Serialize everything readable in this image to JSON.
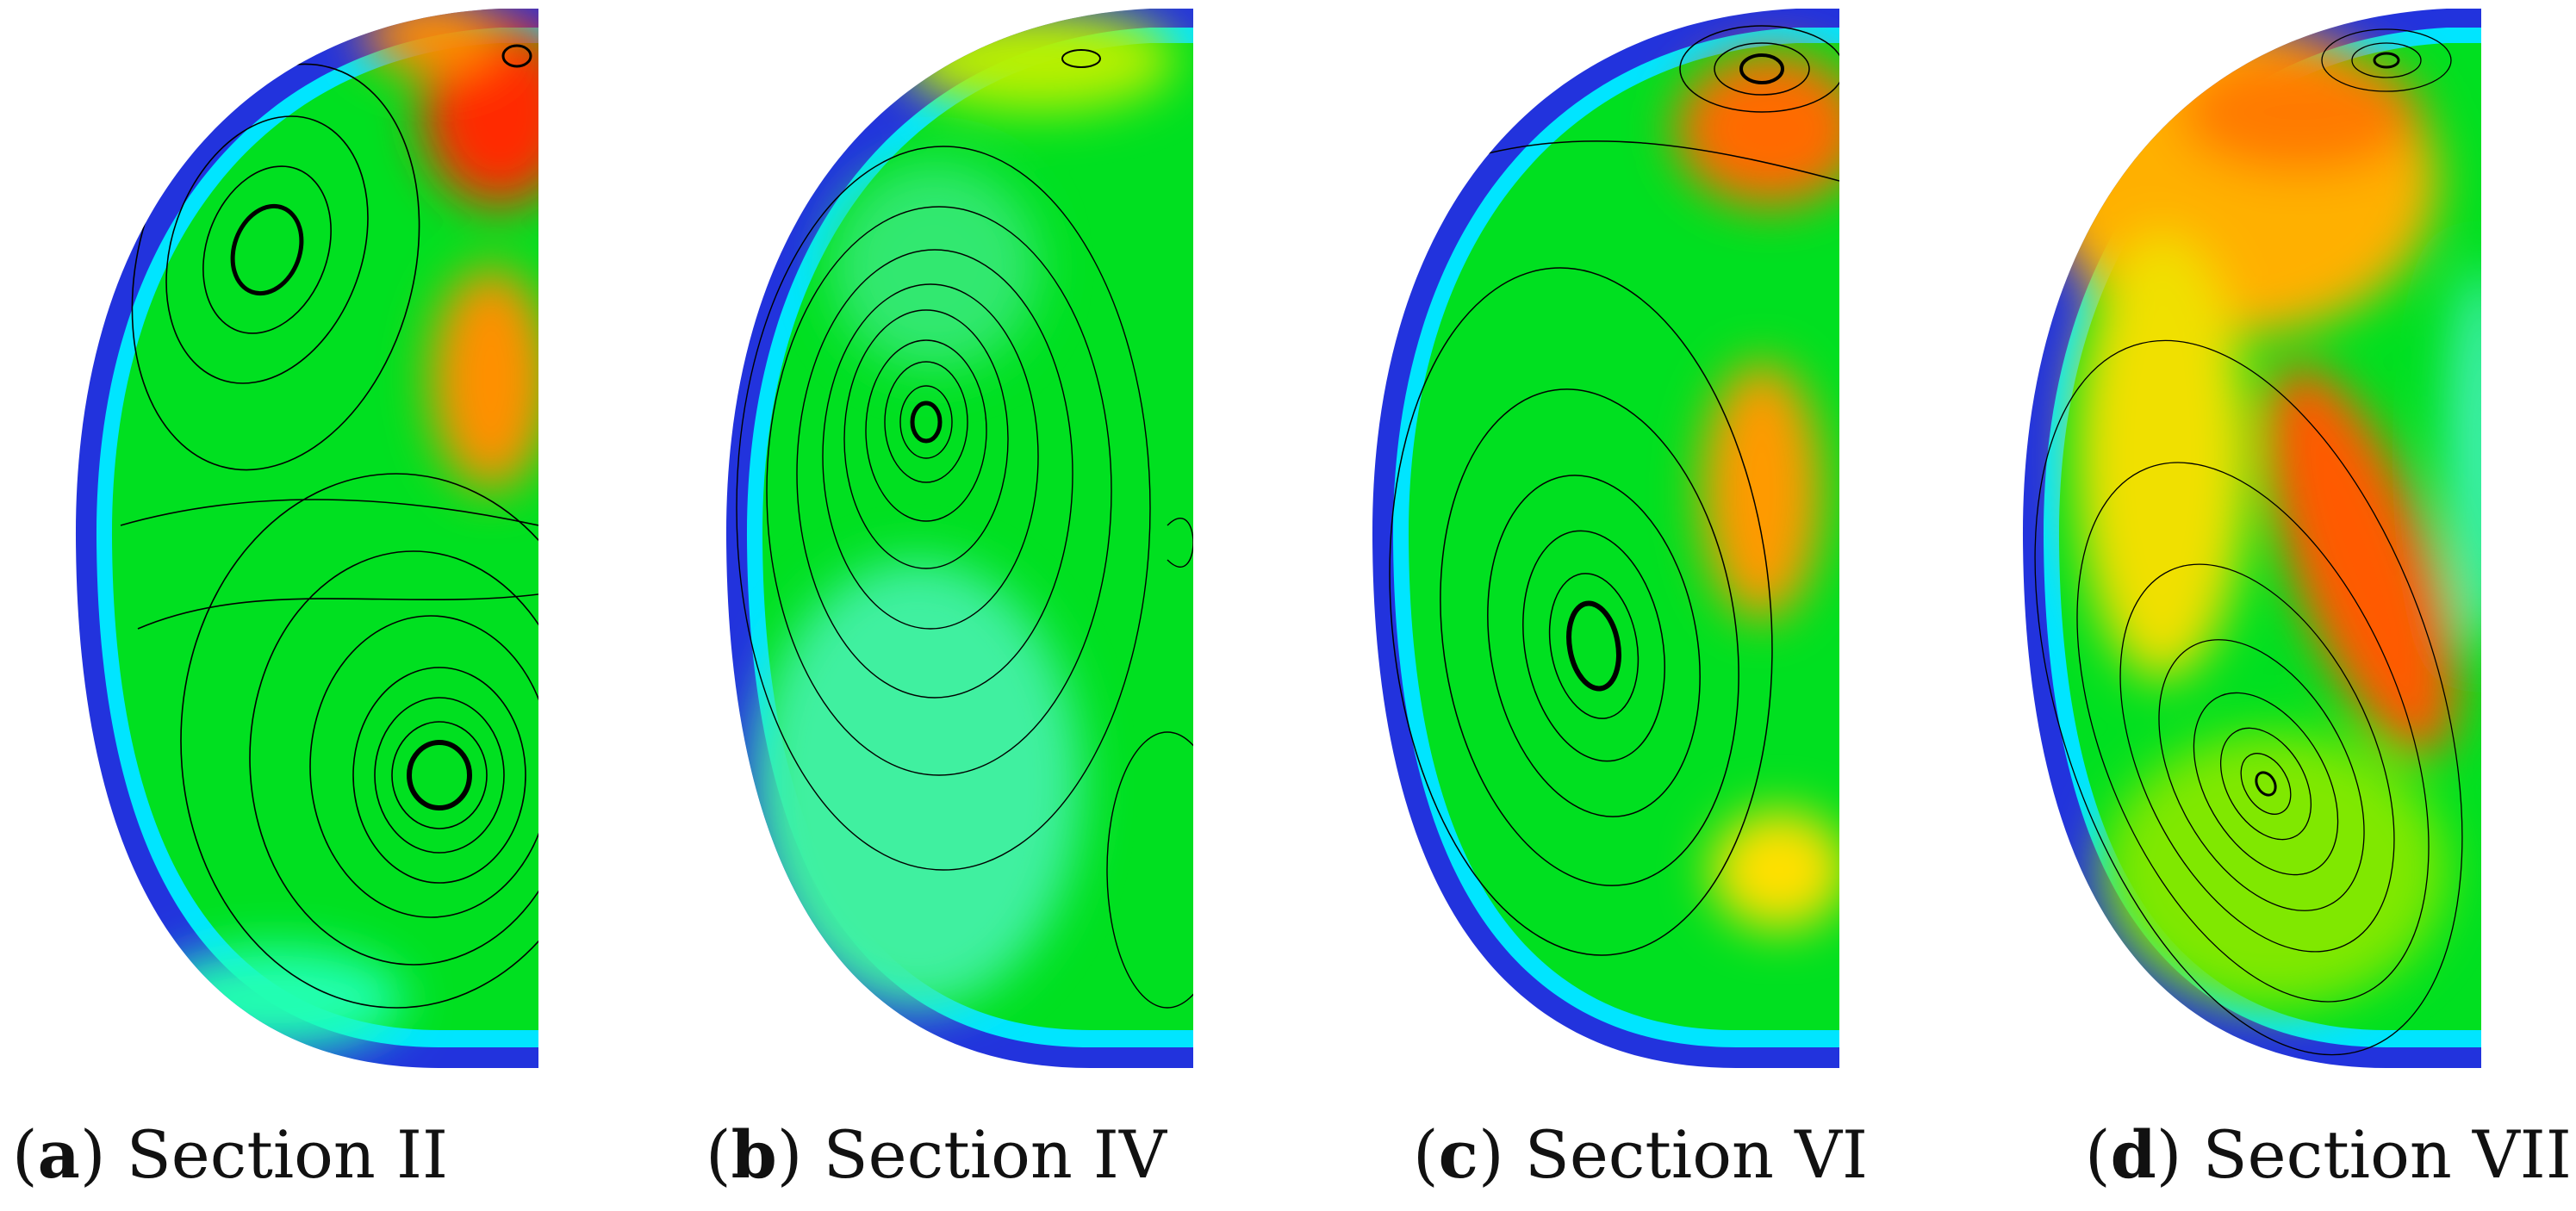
{
  "figure": {
    "panels": [
      {
        "letter": "a",
        "section": "Section II"
      },
      {
        "letter": "b",
        "section": "Section IV"
      },
      {
        "letter": "c",
        "section": "Section VI"
      },
      {
        "letter": "d",
        "section": "Section VII"
      }
    ],
    "colors": {
      "wall_blue": "#2233dd",
      "wall_cyan": "#00e5ff",
      "field_green": "#00e020",
      "yellow": "#ffe000",
      "orange": "#ff8800",
      "red": "#ff1a00",
      "streamline": "#000000"
    }
  }
}
